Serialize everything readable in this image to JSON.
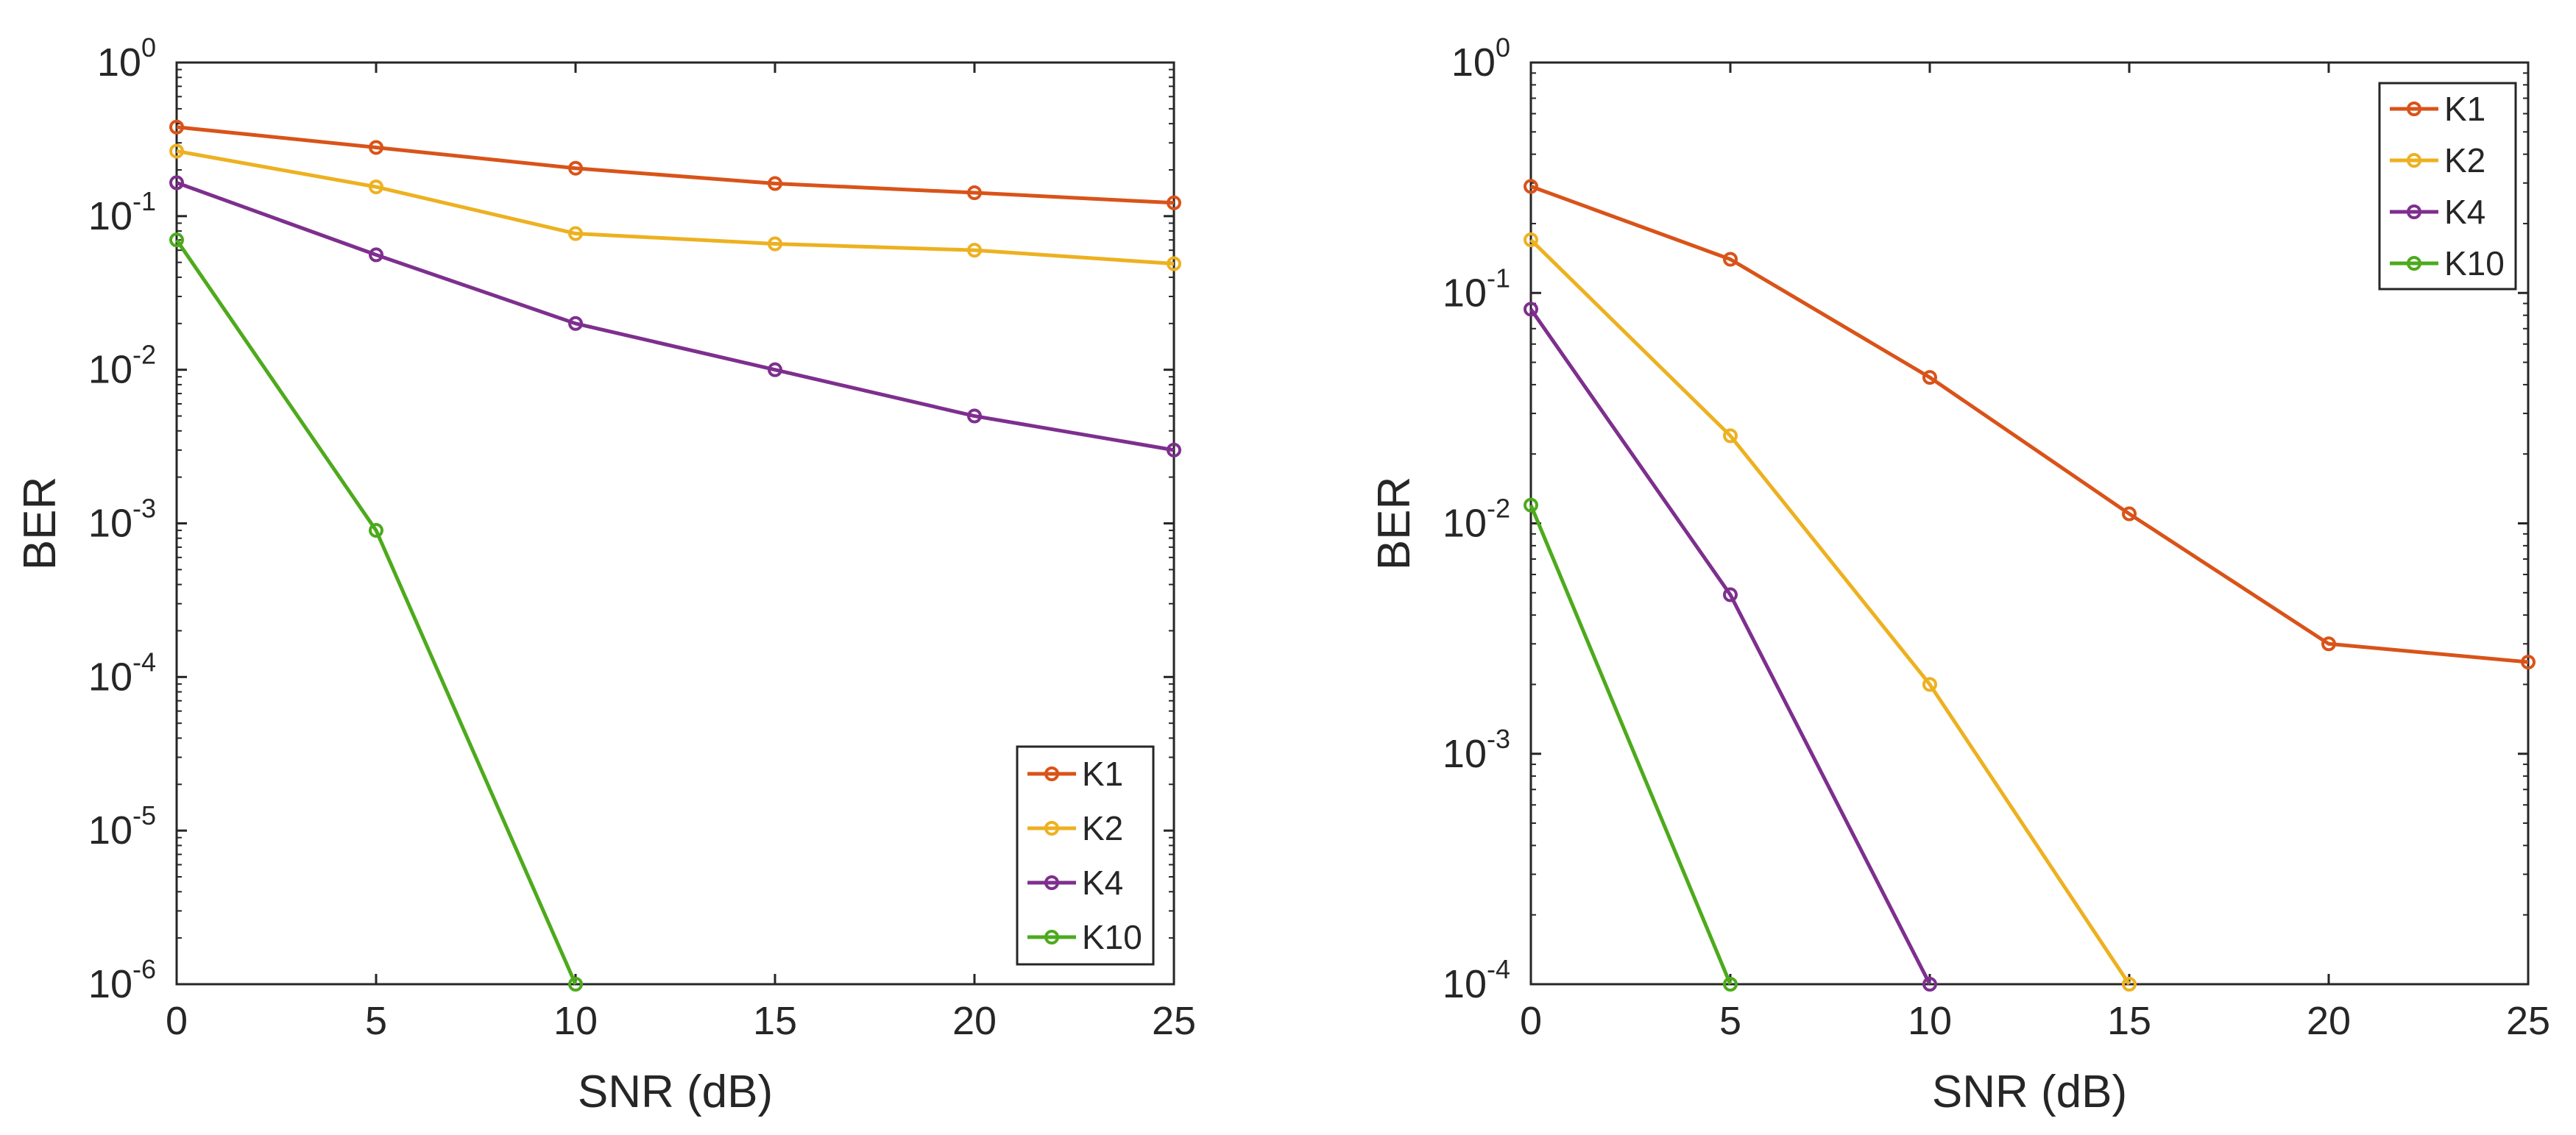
{
  "chart_data": [
    {
      "type": "line",
      "yscale": "log",
      "xlabel": "SNR (dB)",
      "ylabel": "BER",
      "xlim": [
        0,
        25
      ],
      "ylim": [
        1e-06,
        1
      ],
      "x_ticks": [
        "0",
        "5",
        "10",
        "15",
        "20",
        "25"
      ],
      "y_ticks": [
        {
          "base": "10",
          "exp": "0"
        },
        {
          "base": "10",
          "exp": "-1"
        },
        {
          "base": "10",
          "exp": "-2"
        },
        {
          "base": "10",
          "exp": "-3"
        },
        {
          "base": "10",
          "exp": "-4"
        },
        {
          "base": "10",
          "exp": "-5"
        },
        {
          "base": "10",
          "exp": "-6"
        }
      ],
      "legend": "bottom-right",
      "series": [
        {
          "name": "K1",
          "color": "#D95319",
          "x": [
            0,
            5,
            10,
            15,
            20,
            25
          ],
          "values": [
            0.38,
            0.28,
            0.205,
            0.163,
            0.142,
            0.122
          ]
        },
        {
          "name": "K2",
          "color": "#EDB120",
          "x": [
            0,
            5,
            10,
            15,
            20,
            25
          ],
          "values": [
            0.265,
            0.155,
            0.077,
            0.066,
            0.06,
            0.049
          ]
        },
        {
          "name": "K4",
          "color": "#7E2F8E",
          "x": [
            0,
            5,
            10,
            15,
            20,
            25
          ],
          "values": [
            0.165,
            0.056,
            0.02,
            0.01,
            0.005,
            0.003
          ]
        },
        {
          "name": "K10",
          "color": "#4DAA1C",
          "x": [
            0,
            5,
            10
          ],
          "values": [
            0.07,
            0.0009,
            1e-06
          ]
        }
      ]
    },
    {
      "type": "line",
      "yscale": "log",
      "xlabel": "SNR (dB)",
      "ylabel": "BER",
      "xlim": [
        0,
        25
      ],
      "ylim": [
        0.0001,
        1
      ],
      "x_ticks": [
        "0",
        "5",
        "10",
        "15",
        "20",
        "25"
      ],
      "y_ticks": [
        {
          "base": "10",
          "exp": "0"
        },
        {
          "base": "10",
          "exp": "-1"
        },
        {
          "base": "10",
          "exp": "-2"
        },
        {
          "base": "10",
          "exp": "-3"
        },
        {
          "base": "10",
          "exp": "-4"
        }
      ],
      "legend": "top-right",
      "series": [
        {
          "name": "K1",
          "color": "#D95319",
          "x": [
            0,
            5,
            10,
            15,
            20,
            25
          ],
          "values": [
            0.29,
            0.14,
            0.043,
            0.011,
            0.003,
            0.0025
          ]
        },
        {
          "name": "K2",
          "color": "#EDB120",
          "x": [
            0,
            5,
            10,
            15
          ],
          "values": [
            0.17,
            0.024,
            0.002,
            0.0001
          ]
        },
        {
          "name": "K4",
          "color": "#7E2F8E",
          "x": [
            0,
            5,
            10
          ],
          "values": [
            0.085,
            0.0049,
            0.0001
          ]
        },
        {
          "name": "K10",
          "color": "#4DAA1C",
          "x": [
            0,
            5
          ],
          "values": [
            0.012,
            0.0001
          ]
        }
      ]
    }
  ]
}
